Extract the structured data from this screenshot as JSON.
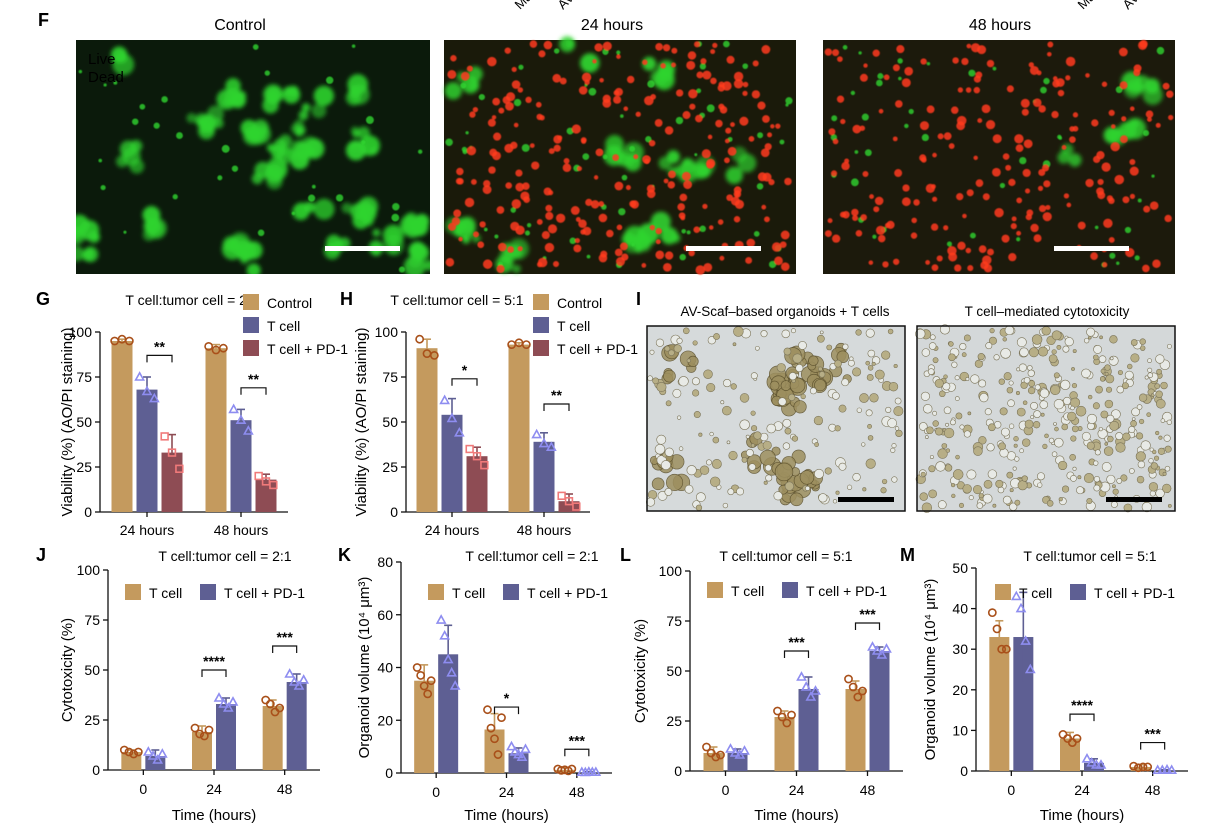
{
  "top_cut": [
    "Ma",
    "AV",
    "Ma",
    "AV"
  ],
  "panels": {
    "F": {
      "letter": "F",
      "titles": [
        "Control",
        "24 hours",
        "48 hours"
      ],
      "legend": {
        "live": "Live",
        "dead": "Dead",
        "live_color": "#2fd42f",
        "dead_color": "#ff3b1f"
      }
    },
    "I": {
      "letter": "I",
      "titles": [
        "AV-Scaf–based organoids + T cells",
        "T cell–mediated cytotoxicity"
      ]
    }
  },
  "colors": {
    "control": "#C49A5E",
    "tcell": "#5E5F93",
    "pd1": "#8E4C54",
    "tcell_pt": "#8E8DF0",
    "pd1_pt": "#F07A7A",
    "ctrl_pt": "#A9501A"
  },
  "chart_data": [
    {
      "id": "G",
      "letter": "G",
      "type": "bar",
      "title": "T cell:tumor cell = 2:1",
      "ylabel": "Viability (%) (AO/PI staining)",
      "xlabel": "",
      "categories": [
        "24 hours",
        "48 hours"
      ],
      "ylim": [
        0,
        100
      ],
      "yticks": [
        0,
        25,
        50,
        75,
        100
      ],
      "legend_position": "top-right",
      "series": [
        {
          "name": "Control",
          "key": "control",
          "values": [
            95,
            91
          ],
          "err": [
            1,
            2
          ],
          "points": [
            [
              95,
              96,
              95
            ],
            [
              92,
              90,
              91
            ]
          ]
        },
        {
          "name": "T cell",
          "key": "tcell",
          "values": [
            68,
            51
          ],
          "err": [
            7,
            6
          ],
          "points": [
            [
              75,
              67,
              63
            ],
            [
              57,
              51,
              45
            ]
          ]
        },
        {
          "name": "T cell + PD-1",
          "key": "pd1",
          "values": [
            33,
            18
          ],
          "err": [
            10,
            3
          ],
          "points": [
            [
              42,
              33,
              24
            ],
            [
              20,
              17,
              15
            ]
          ]
        }
      ],
      "sig": [
        {
          "cat": 0,
          "from": 1,
          "to": 2,
          "label": "**",
          "y": 87
        },
        {
          "cat": 1,
          "from": 1,
          "to": 2,
          "label": "**",
          "y": 69
        }
      ]
    },
    {
      "id": "H",
      "letter": "H",
      "type": "bar",
      "title": "T cell:tumor cell = 5:1",
      "ylabel": "Viability (%) (AO/PI staining)",
      "xlabel": "",
      "categories": [
        "24 hours",
        "48 hours"
      ],
      "ylim": [
        0,
        100
      ],
      "yticks": [
        0,
        25,
        50,
        75,
        100
      ],
      "legend_position": "top-right",
      "series": [
        {
          "name": "Control",
          "key": "control",
          "values": [
            91,
            93
          ],
          "err": [
            5,
            1
          ],
          "points": [
            [
              96,
              88,
              87
            ],
            [
              93,
              94,
              93
            ]
          ]
        },
        {
          "name": "T cell",
          "key": "tcell",
          "values": [
            54,
            39
          ],
          "err": [
            9,
            5
          ],
          "points": [
            [
              62,
              52,
              44
            ],
            [
              43,
              38,
              36
            ]
          ]
        },
        {
          "name": "T cell + PD-1",
          "key": "pd1",
          "values": [
            31,
            6
          ],
          "err": [
            5,
            4
          ],
          "points": [
            [
              35,
              31,
              26
            ],
            [
              9,
              6,
              3
            ]
          ]
        }
      ],
      "sig": [
        {
          "cat": 0,
          "from": 1,
          "to": 2,
          "label": "*",
          "y": 74
        },
        {
          "cat": 1,
          "from": 1,
          "to": 2,
          "label": "**",
          "y": 60
        }
      ]
    },
    {
      "id": "J",
      "letter": "J",
      "type": "bar",
      "title": "T cell:tumor cell = 2:1",
      "ylabel": "Cytotoxicity (%)",
      "xlabel": "Time (hours)",
      "categories": [
        "0",
        "24",
        "48"
      ],
      "ylim": [
        0,
        100
      ],
      "yticks": [
        0,
        25,
        50,
        75,
        100
      ],
      "legend_position": "top",
      "series": [
        {
          "name": "T cell",
          "key": "control",
          "values": [
            9,
            19,
            32
          ],
          "err": [
            1,
            3,
            3
          ],
          "points": [
            [
              10,
              9,
              8,
              9
            ],
            [
              21,
              18,
              17,
              20
            ],
            [
              35,
              33,
              29,
              31
            ]
          ]
        },
        {
          "name": "T cell + PD-1",
          "key": "tcell",
          "values": [
            7,
            33,
            44
          ],
          "err": [
            3,
            3,
            4
          ],
          "points": [
            [
              9,
              7,
              5,
              8
            ],
            [
              36,
              33,
              31,
              34
            ],
            [
              48,
              44,
              42,
              45
            ]
          ]
        }
      ],
      "sig": [
        {
          "cat": 1,
          "from": 0,
          "to": 1,
          "label": "****",
          "y": 50
        },
        {
          "cat": 2,
          "from": 0,
          "to": 1,
          "label": "***",
          "y": 62
        }
      ]
    },
    {
      "id": "K",
      "letter": "K",
      "type": "bar",
      "title": "T cell:tumor cell = 2:1",
      "ylabel": "Organoid volume (10⁴ μm³)",
      "xlabel": "Time (hours)",
      "categories": [
        "0",
        "24",
        "48"
      ],
      "ylim": [
        0,
        80
      ],
      "yticks": [
        0,
        20,
        40,
        60,
        80
      ],
      "legend_position": "top",
      "series": [
        {
          "name": "T cell",
          "key": "control",
          "values": [
            35,
            16.5,
            1.2
          ],
          "err": [
            6,
            6,
            0.8
          ],
          "points": [
            [
              40,
              37,
              33,
              30,
              35
            ],
            [
              24,
              17,
              13,
              7,
              21
            ],
            [
              1.5,
              1,
              1.2,
              0.8,
              1.5
            ]
          ]
        },
        {
          "name": "T cell + PD-1",
          "key": "tcell",
          "values": [
            45,
            7.5,
            0.3
          ],
          "err": [
            11,
            2,
            0.2
          ],
          "points": [
            [
              58,
              52,
              43,
              38,
              33
            ],
            [
              10,
              8,
              7,
              6,
              9
            ],
            [
              0.3,
              0.2,
              0.4,
              0.3,
              0.3
            ]
          ]
        }
      ],
      "sig": [
        {
          "cat": 1,
          "from": 0,
          "to": 1,
          "label": "*",
          "y": 25
        },
        {
          "cat": 2,
          "from": 0,
          "to": 1,
          "label": "***",
          "y": 9
        }
      ]
    },
    {
      "id": "L",
      "letter": "L",
      "type": "bar",
      "title": "T cell:tumor cell = 5:1",
      "ylabel": "Cytotoxicity (%)",
      "xlabel": "Time (hours)",
      "categories": [
        "0",
        "24",
        "48"
      ],
      "ylim": [
        0,
        100
      ],
      "yticks": [
        0,
        25,
        50,
        75,
        100
      ],
      "legend_position": "top",
      "series": [
        {
          "name": "T cell",
          "key": "control",
          "values": [
            9,
            27,
            41
          ],
          "err": [
            3,
            3,
            4
          ],
          "points": [
            [
              12,
              9,
              7,
              8
            ],
            [
              30,
              27,
              24,
              28
            ],
            [
              46,
              42,
              37,
              40
            ]
          ]
        },
        {
          "name": "T cell + PD-1",
          "key": "tcell",
          "values": [
            9,
            41,
            60
          ],
          "err": [
            2,
            6,
            2
          ],
          "points": [
            [
              11,
              9,
              8,
              10
            ],
            [
              47,
              42,
              37,
              40
            ],
            [
              62,
              60,
              58,
              61
            ]
          ]
        }
      ],
      "sig": [
        {
          "cat": 1,
          "from": 0,
          "to": 1,
          "label": "***",
          "y": 60
        },
        {
          "cat": 2,
          "from": 0,
          "to": 1,
          "label": "***",
          "y": 74
        }
      ]
    },
    {
      "id": "M",
      "letter": "M",
      "type": "bar",
      "title": "T cell:tumor cell = 5:1",
      "ylabel": "Organoid volume (10⁴ μm³)",
      "xlabel": "Time (hours)",
      "categories": [
        "0",
        "24",
        "48"
      ],
      "ylim": [
        0,
        50
      ],
      "yticks": [
        0,
        10,
        20,
        30,
        40,
        50
      ],
      "legend_position": "top",
      "series": [
        {
          "name": "T cell",
          "key": "control",
          "values": [
            33,
            8,
            1
          ],
          "err": [
            4,
            1.5,
            0.6
          ],
          "points": [
            [
              39,
              35,
              30,
              30
            ],
            [
              9,
              8,
              7,
              8
            ],
            [
              1.2,
              0.8,
              1,
              1
            ]
          ]
        },
        {
          "name": "T cell + PD-1",
          "key": "tcell",
          "values": [
            33,
            2,
            0.2
          ],
          "err": [
            11,
            1,
            0.1
          ],
          "points": [
            [
              43,
              40,
              32,
              25
            ],
            [
              3,
              2,
              1.5,
              1.5
            ],
            [
              0.2,
              0.2,
              0.3,
              0.2
            ]
          ]
        }
      ],
      "sig": [
        {
          "cat": 1,
          "from": 0,
          "to": 1,
          "label": "****",
          "y": 14
        },
        {
          "cat": 2,
          "from": 0,
          "to": 1,
          "label": "***",
          "y": 7
        }
      ]
    }
  ]
}
